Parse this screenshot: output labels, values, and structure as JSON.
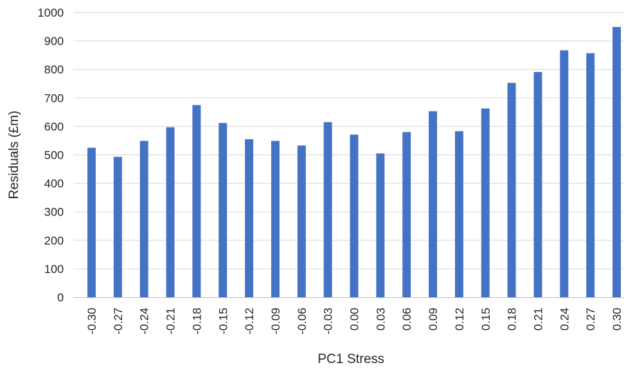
{
  "chart_data": {
    "type": "bar",
    "title": "",
    "xlabel": "PC1 Stress",
    "ylabel": "Residuals (£m)",
    "categories": [
      "-0.30",
      "-0.27",
      "-0.24",
      "-0.21",
      "-0.18",
      "-0.15",
      "-0.12",
      "-0.09",
      "-0.06",
      "-0.03",
      "0.00",
      "0.03",
      "0.06",
      "0.09",
      "0.12",
      "0.15",
      "0.18",
      "0.21",
      "0.24",
      "0.27",
      "0.30"
    ],
    "values": [
      525,
      493,
      549,
      597,
      675,
      612,
      555,
      549,
      533,
      615,
      571,
      505,
      580,
      653,
      583,
      663,
      753,
      791,
      867,
      857,
      949
    ],
    "ylim": [
      0,
      1000
    ],
    "yticks": [
      "0",
      "100",
      "200",
      "300",
      "400",
      "500",
      "600",
      "700",
      "800",
      "900",
      "1000"
    ],
    "grid": true,
    "legend": "none",
    "bar_color": "#4472c4"
  }
}
